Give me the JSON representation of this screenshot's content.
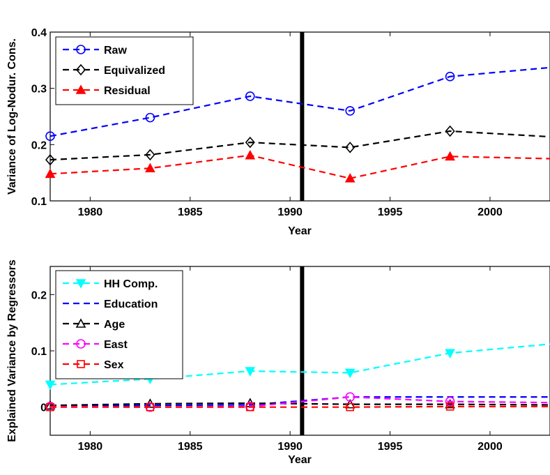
{
  "chart_data": [
    {
      "type": "line",
      "xlabel": "Year",
      "ylabel": "Variance of Log-Nodur. Cons.",
      "xlim": [
        1978,
        2003
      ],
      "ylim": [
        0.1,
        0.4
      ],
      "xticks": [
        1980,
        1985,
        1990,
        1995,
        2000
      ],
      "yticks": [
        0.1,
        0.2,
        0.3,
        0.4
      ],
      "ytick_labels": [
        "0.1",
        "0.2",
        "0.3",
        "0.4"
      ],
      "vline": 1990.6,
      "legend_position": "top-left",
      "series": [
        {
          "name": "Raw",
          "color": "#0000ff",
          "marker": "circle",
          "x": [
            1978,
            1983,
            1988,
            1993,
            1998,
            2003
          ],
          "y": [
            0.215,
            0.248,
            0.286,
            0.26,
            0.321,
            0.337
          ]
        },
        {
          "name": "Equivalized",
          "color": "#000000",
          "marker": "diamond",
          "x": [
            1978,
            1983,
            1988,
            1993,
            1998,
            2003
          ],
          "y": [
            0.173,
            0.182,
            0.204,
            0.195,
            0.224,
            0.214
          ]
        },
        {
          "name": "Residual",
          "color": "#ff0000",
          "marker": "triangle-up",
          "x": [
            1978,
            1983,
            1988,
            1993,
            1998,
            2003
          ],
          "y": [
            0.148,
            0.158,
            0.181,
            0.14,
            0.179,
            0.175
          ]
        }
      ]
    },
    {
      "type": "line",
      "xlabel": "Year",
      "ylabel": "Explained Variance by Regressors",
      "xlim": [
        1978,
        2003
      ],
      "ylim": [
        -0.05,
        0.25
      ],
      "xticks": [
        1980,
        1985,
        1990,
        1995,
        2000
      ],
      "yticks": [
        0,
        0.1,
        0.2
      ],
      "ytick_labels": [
        "0",
        "0.1",
        "0.2"
      ],
      "vline": 1990.6,
      "legend_position": "top-left",
      "series": [
        {
          "name": "HH Comp.",
          "color": "#00ffff",
          "marker": "triangle-down",
          "x": [
            1978,
            1983,
            1988,
            1993,
            1998,
            2003
          ],
          "y": [
            0.04,
            0.05,
            0.064,
            0.061,
            0.096,
            0.112
          ]
        },
        {
          "name": "Education",
          "color": "#0000ff",
          "marker": "none",
          "x": [
            1978,
            1983,
            1988,
            1993,
            1998,
            2003
          ],
          "y": [
            0.002,
            0.003,
            0.004,
            0.018,
            0.018,
            0.018
          ]
        },
        {
          "name": "Age",
          "color": "#000000",
          "marker": "triangle-up",
          "x": [
            1978,
            1983,
            1988,
            1993,
            1998,
            2003
          ],
          "y": [
            0.003,
            0.006,
            0.007,
            0.005,
            0.005,
            0.004
          ]
        },
        {
          "name": "East",
          "color": "#ff00ff",
          "marker": "circle",
          "x": [
            1978,
            1983,
            1988,
            1993,
            1998,
            2003
          ],
          "y": [
            0.001,
            0.0,
            0.001,
            0.018,
            0.01,
            0.008
          ]
        },
        {
          "name": "Sex",
          "color": "#ff0000",
          "marker": "square",
          "x": [
            1978,
            1983,
            1988,
            1993,
            1998,
            2003
          ],
          "y": [
            0.0,
            0.0,
            0.0,
            0.0,
            0.001,
            0.001
          ]
        }
      ]
    }
  ]
}
